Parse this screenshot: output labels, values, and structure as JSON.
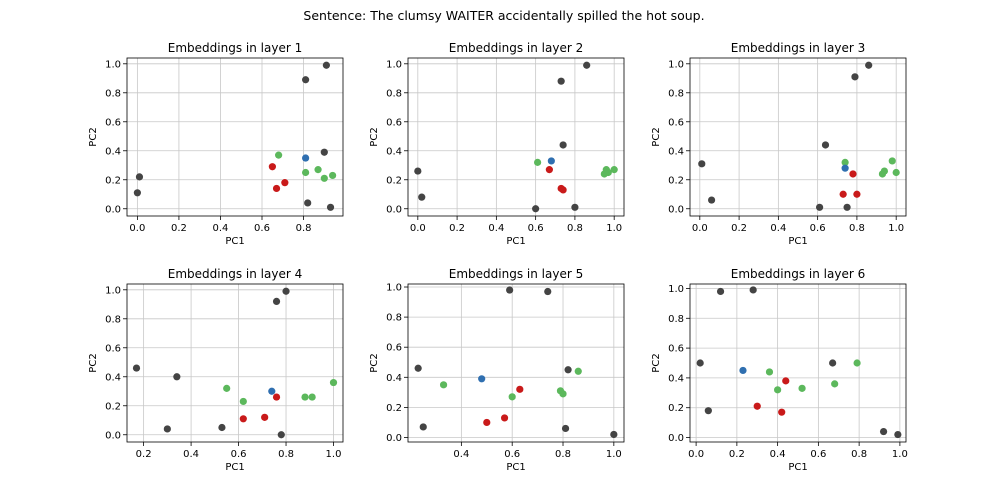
{
  "figure": {
    "suptitle": "Sentence: The clumsy WAITER accidentally spilled the hot soup."
  },
  "colors": {
    "gray": "#444444",
    "red": "#c91a1a",
    "green": "#5cb85c",
    "blue": "#2f6fb0",
    "grid": "#c8c8c8"
  },
  "chart_data": [
    {
      "type": "scatter",
      "title": "Embeddings in layer 1",
      "xlabel": "PC1",
      "ylabel": "PC2",
      "xlim": [
        -0.05,
        0.99
      ],
      "ylim": [
        -0.05,
        1.04
      ],
      "xticks": [
        0.0,
        0.2,
        0.4,
        0.6,
        0.8
      ],
      "yticks": [
        0.0,
        0.2,
        0.4,
        0.6,
        0.8,
        1.0
      ],
      "grid": true,
      "points": [
        {
          "x": 0.0,
          "y": 0.11,
          "color": "gray"
        },
        {
          "x": 0.01,
          "y": 0.22,
          "color": "gray"
        },
        {
          "x": 0.81,
          "y": 0.89,
          "color": "gray"
        },
        {
          "x": 0.91,
          "y": 0.99,
          "color": "gray"
        },
        {
          "x": 0.9,
          "y": 0.39,
          "color": "gray"
        },
        {
          "x": 0.82,
          "y": 0.04,
          "color": "gray"
        },
        {
          "x": 0.93,
          "y": 0.01,
          "color": "gray"
        },
        {
          "x": 0.65,
          "y": 0.29,
          "color": "red"
        },
        {
          "x": 0.71,
          "y": 0.18,
          "color": "red"
        },
        {
          "x": 0.67,
          "y": 0.14,
          "color": "red"
        },
        {
          "x": 0.68,
          "y": 0.37,
          "color": "green"
        },
        {
          "x": 0.81,
          "y": 0.25,
          "color": "green"
        },
        {
          "x": 0.87,
          "y": 0.27,
          "color": "green"
        },
        {
          "x": 0.9,
          "y": 0.21,
          "color": "green"
        },
        {
          "x": 0.94,
          "y": 0.23,
          "color": "green"
        },
        {
          "x": 0.81,
          "y": 0.35,
          "color": "blue"
        }
      ]
    },
    {
      "type": "scatter",
      "title": "Embeddings in layer 2",
      "xlabel": "PC1",
      "ylabel": "PC2",
      "xlim": [
        -0.05,
        1.05
      ],
      "ylim": [
        -0.05,
        1.04
      ],
      "xticks": [
        0.0,
        0.2,
        0.4,
        0.6,
        0.8,
        1.0
      ],
      "yticks": [
        0.0,
        0.2,
        0.4,
        0.6,
        0.8,
        1.0
      ],
      "grid": true,
      "points": [
        {
          "x": 0.0,
          "y": 0.26,
          "color": "gray"
        },
        {
          "x": 0.02,
          "y": 0.08,
          "color": "gray"
        },
        {
          "x": 0.73,
          "y": 0.88,
          "color": "gray"
        },
        {
          "x": 0.86,
          "y": 0.99,
          "color": "gray"
        },
        {
          "x": 0.74,
          "y": 0.44,
          "color": "gray"
        },
        {
          "x": 0.6,
          "y": 0.0,
          "color": "gray"
        },
        {
          "x": 0.8,
          "y": 0.01,
          "color": "gray"
        },
        {
          "x": 0.67,
          "y": 0.27,
          "color": "red"
        },
        {
          "x": 0.73,
          "y": 0.14,
          "color": "red"
        },
        {
          "x": 0.74,
          "y": 0.13,
          "color": "red"
        },
        {
          "x": 0.61,
          "y": 0.32,
          "color": "green"
        },
        {
          "x": 0.95,
          "y": 0.24,
          "color": "green"
        },
        {
          "x": 0.96,
          "y": 0.27,
          "color": "green"
        },
        {
          "x": 0.97,
          "y": 0.25,
          "color": "green"
        },
        {
          "x": 1.0,
          "y": 0.27,
          "color": "green"
        },
        {
          "x": 0.68,
          "y": 0.33,
          "color": "blue"
        }
      ]
    },
    {
      "type": "scatter",
      "title": "Embeddings in layer 3",
      "xlabel": "PC1",
      "ylabel": "PC2",
      "xlim": [
        -0.05,
        1.05
      ],
      "ylim": [
        -0.05,
        1.04
      ],
      "xticks": [
        0.0,
        0.2,
        0.4,
        0.6,
        0.8,
        1.0
      ],
      "yticks": [
        0.0,
        0.2,
        0.4,
        0.6,
        0.8,
        1.0
      ],
      "grid": true,
      "points": [
        {
          "x": 0.01,
          "y": 0.31,
          "color": "gray"
        },
        {
          "x": 0.06,
          "y": 0.06,
          "color": "gray"
        },
        {
          "x": 0.79,
          "y": 0.91,
          "color": "gray"
        },
        {
          "x": 0.86,
          "y": 0.99,
          "color": "gray"
        },
        {
          "x": 0.64,
          "y": 0.44,
          "color": "gray"
        },
        {
          "x": 0.61,
          "y": 0.01,
          "color": "gray"
        },
        {
          "x": 0.75,
          "y": 0.01,
          "color": "gray"
        },
        {
          "x": 0.73,
          "y": 0.1,
          "color": "red"
        },
        {
          "x": 0.78,
          "y": 0.24,
          "color": "red"
        },
        {
          "x": 0.8,
          "y": 0.1,
          "color": "red"
        },
        {
          "x": 0.74,
          "y": 0.32,
          "color": "green"
        },
        {
          "x": 0.93,
          "y": 0.24,
          "color": "green"
        },
        {
          "x": 0.94,
          "y": 0.26,
          "color": "green"
        },
        {
          "x": 0.98,
          "y": 0.33,
          "color": "green"
        },
        {
          "x": 1.0,
          "y": 0.25,
          "color": "green"
        },
        {
          "x": 0.74,
          "y": 0.28,
          "color": "blue"
        }
      ]
    },
    {
      "type": "scatter",
      "title": "Embeddings in layer 4",
      "xlabel": "PC1",
      "ylabel": "PC2",
      "xlim": [
        0.13,
        1.04
      ],
      "ylim": [
        -0.05,
        1.04
      ],
      "xticks": [
        0.2,
        0.4,
        0.6,
        0.8,
        1.0
      ],
      "yticks": [
        0.0,
        0.2,
        0.4,
        0.6,
        0.8,
        1.0
      ],
      "grid": true,
      "points": [
        {
          "x": 0.17,
          "y": 0.46,
          "color": "gray"
        },
        {
          "x": 0.3,
          "y": 0.04,
          "color": "gray"
        },
        {
          "x": 0.34,
          "y": 0.4,
          "color": "gray"
        },
        {
          "x": 0.53,
          "y": 0.05,
          "color": "gray"
        },
        {
          "x": 0.76,
          "y": 0.92,
          "color": "gray"
        },
        {
          "x": 0.8,
          "y": 0.99,
          "color": "gray"
        },
        {
          "x": 0.78,
          "y": 0.0,
          "color": "gray"
        },
        {
          "x": 0.62,
          "y": 0.11,
          "color": "red"
        },
        {
          "x": 0.71,
          "y": 0.12,
          "color": "red"
        },
        {
          "x": 0.76,
          "y": 0.26,
          "color": "red"
        },
        {
          "x": 0.55,
          "y": 0.32,
          "color": "green"
        },
        {
          "x": 0.62,
          "y": 0.23,
          "color": "green"
        },
        {
          "x": 0.88,
          "y": 0.26,
          "color": "green"
        },
        {
          "x": 0.91,
          "y": 0.26,
          "color": "green"
        },
        {
          "x": 1.0,
          "y": 0.36,
          "color": "green"
        },
        {
          "x": 0.74,
          "y": 0.3,
          "color": "blue"
        }
      ]
    },
    {
      "type": "scatter",
      "title": "Embeddings in layer 5",
      "xlabel": "PC1",
      "ylabel": "PC2",
      "xlim": [
        0.19,
        1.04
      ],
      "ylim": [
        -0.03,
        1.02
      ],
      "xticks": [
        0.4,
        0.6,
        0.8,
        1.0
      ],
      "yticks": [
        0.0,
        0.2,
        0.4,
        0.6,
        0.8,
        1.0
      ],
      "grid": true,
      "points": [
        {
          "x": 0.23,
          "y": 0.46,
          "color": "gray"
        },
        {
          "x": 0.25,
          "y": 0.07,
          "color": "gray"
        },
        {
          "x": 0.59,
          "y": 0.98,
          "color": "gray"
        },
        {
          "x": 0.74,
          "y": 0.97,
          "color": "gray"
        },
        {
          "x": 0.82,
          "y": 0.45,
          "color": "gray"
        },
        {
          "x": 0.81,
          "y": 0.06,
          "color": "gray"
        },
        {
          "x": 1.0,
          "y": 0.02,
          "color": "gray"
        },
        {
          "x": 0.5,
          "y": 0.1,
          "color": "red"
        },
        {
          "x": 0.57,
          "y": 0.13,
          "color": "red"
        },
        {
          "x": 0.63,
          "y": 0.32,
          "color": "red"
        },
        {
          "x": 0.33,
          "y": 0.35,
          "color": "green"
        },
        {
          "x": 0.6,
          "y": 0.27,
          "color": "green"
        },
        {
          "x": 0.79,
          "y": 0.31,
          "color": "green"
        },
        {
          "x": 0.8,
          "y": 0.29,
          "color": "green"
        },
        {
          "x": 0.86,
          "y": 0.44,
          "color": "green"
        },
        {
          "x": 0.48,
          "y": 0.39,
          "color": "blue"
        }
      ]
    },
    {
      "type": "scatter",
      "title": "Embeddings in layer 6",
      "xlabel": "PC1",
      "ylabel": "PC2",
      "xlim": [
        -0.03,
        1.03
      ],
      "ylim": [
        -0.03,
        1.03
      ],
      "xticks": [
        0.0,
        0.2,
        0.4,
        0.6,
        0.8,
        1.0
      ],
      "yticks": [
        0.0,
        0.2,
        0.4,
        0.6,
        0.8,
        1.0
      ],
      "grid": true,
      "points": [
        {
          "x": 0.02,
          "y": 0.5,
          "color": "gray"
        },
        {
          "x": 0.06,
          "y": 0.18,
          "color": "gray"
        },
        {
          "x": 0.12,
          "y": 0.98,
          "color": "gray"
        },
        {
          "x": 0.28,
          "y": 0.99,
          "color": "gray"
        },
        {
          "x": 0.67,
          "y": 0.5,
          "color": "gray"
        },
        {
          "x": 0.92,
          "y": 0.04,
          "color": "gray"
        },
        {
          "x": 0.99,
          "y": 0.02,
          "color": "gray"
        },
        {
          "x": 0.3,
          "y": 0.21,
          "color": "red"
        },
        {
          "x": 0.42,
          "y": 0.17,
          "color": "red"
        },
        {
          "x": 0.44,
          "y": 0.38,
          "color": "red"
        },
        {
          "x": 0.36,
          "y": 0.44,
          "color": "green"
        },
        {
          "x": 0.4,
          "y": 0.32,
          "color": "green"
        },
        {
          "x": 0.52,
          "y": 0.33,
          "color": "green"
        },
        {
          "x": 0.68,
          "y": 0.36,
          "color": "green"
        },
        {
          "x": 0.79,
          "y": 0.5,
          "color": "green"
        },
        {
          "x": 0.23,
          "y": 0.45,
          "color": "blue"
        }
      ]
    }
  ]
}
